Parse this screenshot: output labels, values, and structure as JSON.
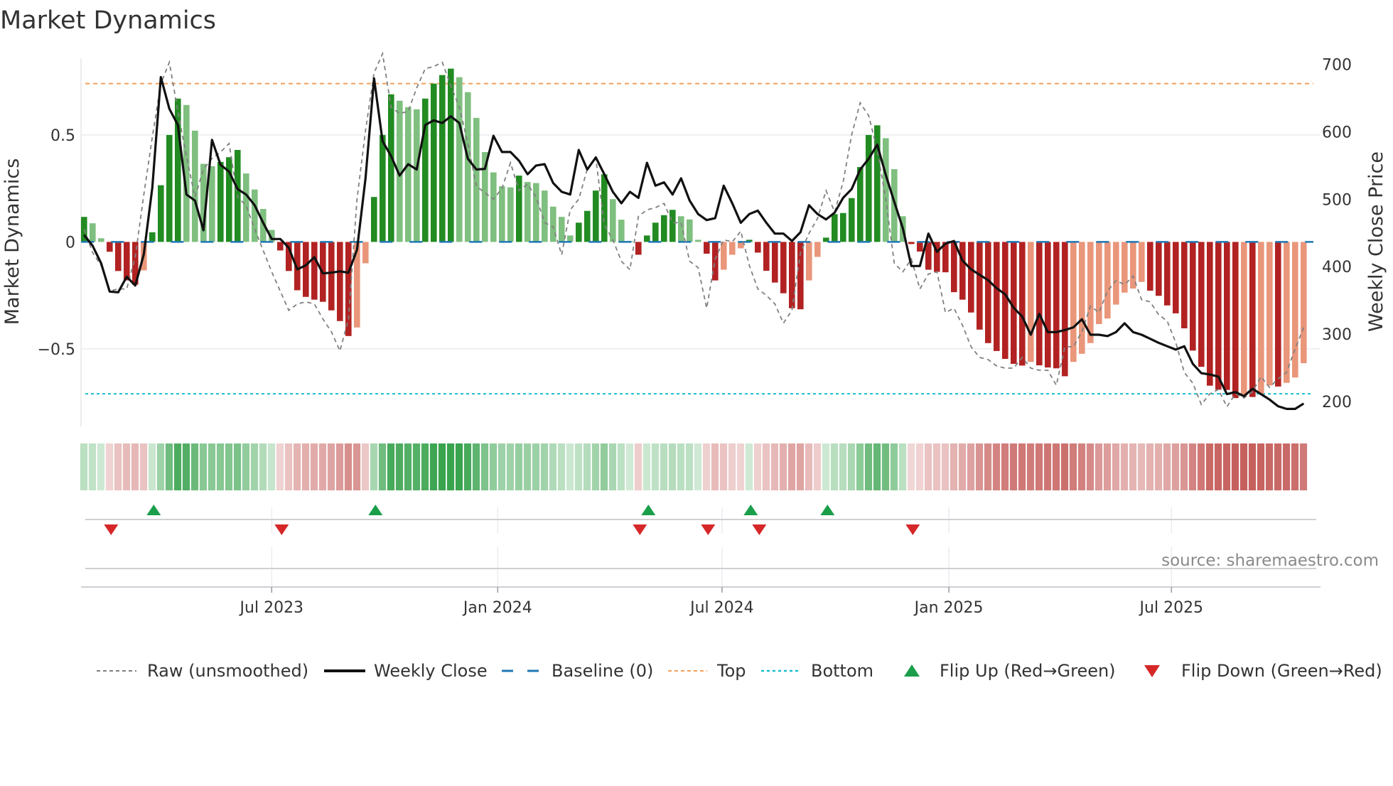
{
  "chart_data": {
    "type": "bar",
    "title": "Market Dynamics",
    "ylabel": "Market Dynamics",
    "y2label": "Weekly Close Price",
    "ylim": [
      -0.87,
      0.87
    ],
    "y2lim": [
      165,
      725
    ],
    "yticks": [
      {
        "v": 0.5,
        "label": "0.5"
      },
      {
        "v": 0,
        "label": "0"
      },
      {
        "v": -0.5,
        "label": "−0.5"
      }
    ],
    "y2ticks": [
      {
        "v": 700,
        "label": "700"
      },
      {
        "v": 600,
        "label": "600"
      },
      {
        "v": 500,
        "label": "500"
      },
      {
        "v": 400,
        "label": "400"
      },
      {
        "v": 300,
        "label": "300"
      },
      {
        "v": 200,
        "label": "200"
      }
    ],
    "xticks": [
      {
        "week": 22,
        "label": "Jul 2023"
      },
      {
        "week": 48.5,
        "label": "Jan 2024"
      },
      {
        "week": 74.8,
        "label": "Jul 2024"
      },
      {
        "week": 101.4,
        "label": "Jan 2025"
      },
      {
        "week": 127.5,
        "label": "Jul 2025"
      }
    ],
    "top_level": 0.74,
    "bottom_level": -0.71,
    "baseline": 0,
    "dynamics": [
      0.117,
      0.087,
      0.017,
      -0.046,
      -0.136,
      -0.18,
      -0.2,
      -0.133,
      0.045,
      0.265,
      0.5,
      0.67,
      0.64,
      0.52,
      0.365,
      0.354,
      0.374,
      0.396,
      0.43,
      0.32,
      0.245,
      0.154,
      0.056,
      -0.04,
      -0.136,
      -0.226,
      -0.257,
      -0.27,
      -0.28,
      -0.32,
      -0.37,
      -0.44,
      -0.4,
      -0.1,
      0.21,
      0.5,
      0.69,
      0.66,
      0.63,
      0.62,
      0.67,
      0.74,
      0.78,
      0.81,
      0.77,
      0.7,
      0.58,
      0.42,
      0.325,
      0.26,
      0.255,
      0.31,
      0.28,
      0.275,
      0.24,
      0.165,
      0.117,
      0.03,
      0.09,
      0.145,
      0.24,
      0.316,
      0.2,
      0.104,
      0.005,
      -0.06,
      0.03,
      0.09,
      0.125,
      0.15,
      0.12,
      0.105,
      0.01,
      -0.055,
      -0.18,
      -0.13,
      -0.06,
      -0.03,
      0.01,
      -0.05,
      -0.135,
      -0.19,
      -0.24,
      -0.31,
      -0.315,
      -0.18,
      -0.07,
      0.02,
      0.13,
      0.135,
      0.205,
      0.35,
      0.5,
      0.545,
      0.485,
      0.34,
      0.12,
      -0.01,
      -0.045,
      -0.13,
      -0.14,
      -0.142,
      -0.235,
      -0.27,
      -0.33,
      -0.41,
      -0.473,
      -0.51,
      -0.547,
      -0.57,
      -0.578,
      -0.561,
      -0.577,
      -0.587,
      -0.591,
      -0.628,
      -0.561,
      -0.523,
      -0.473,
      -0.384,
      -0.358,
      -0.293,
      -0.237,
      -0.218,
      -0.187,
      -0.228,
      -0.252,
      -0.297,
      -0.334,
      -0.404,
      -0.508,
      -0.584,
      -0.672,
      -0.691,
      -0.692,
      -0.73,
      -0.722,
      -0.725,
      -0.71,
      -0.671,
      -0.676,
      -0.659,
      -0.634,
      -0.567
    ],
    "raw": [
      0.06,
      -0.05,
      -0.11,
      -0.23,
      -0.22,
      -0.22,
      -0.07,
      0.22,
      0.49,
      0.74,
      0.84,
      0.61,
      0.4,
      0.21,
      0.34,
      0.39,
      0.42,
      0.46,
      0.21,
      0.17,
      0.06,
      -0.04,
      -0.14,
      -0.23,
      -0.32,
      -0.29,
      -0.28,
      -0.29,
      -0.36,
      -0.42,
      -0.51,
      -0.36,
      0.2,
      0.52,
      0.79,
      0.88,
      0.63,
      0.6,
      0.61,
      0.72,
      0.81,
      0.82,
      0.84,
      0.73,
      0.63,
      0.46,
      0.26,
      0.23,
      0.2,
      0.25,
      0.37,
      0.24,
      0.27,
      0.21,
      0.09,
      0.07,
      -0.06,
      0.15,
      0.2,
      0.34,
      0.39,
      0.08,
      0.01,
      -0.09,
      -0.13,
      0.12,
      0.15,
      0.16,
      0.18,
      0.09,
      0.09,
      -0.09,
      -0.12,
      -0.31,
      -0.08,
      0.01,
      0,
      0.05,
      -0.11,
      -0.22,
      -0.25,
      -0.29,
      -0.38,
      -0.32,
      -0.05,
      0.04,
      0.11,
      0.24,
      0.14,
      0.28,
      0.5,
      0.65,
      0.59,
      0.43,
      0.2,
      -0.1,
      -0.14,
      -0.08,
      -0.22,
      -0.15,
      -0.14,
      -0.33,
      -0.31,
      -0.39,
      -0.49,
      -0.54,
      -0.55,
      -0.58,
      -0.59,
      -0.59,
      -0.54,
      -0.59,
      -0.6,
      -0.6,
      -0.67,
      -0.49,
      -0.49,
      -0.42,
      -0.3,
      -0.33,
      -0.23,
      -0.18,
      -0.2,
      -0.16,
      -0.27,
      -0.28,
      -0.34,
      -0.37,
      -0.47,
      -0.61,
      -0.66,
      -0.76,
      -0.71,
      -0.69,
      -0.77,
      -0.71,
      -0.73,
      -0.7,
      -0.63,
      -0.68,
      -0.64,
      -0.61,
      -0.5,
      -0.4
    ],
    "weekly_close": [
      447,
      431,
      405,
      363,
      362,
      385,
      372,
      418,
      517,
      681,
      634,
      610,
      507,
      498,
      454,
      588,
      551,
      541,
      515,
      507,
      491,
      465,
      441,
      441,
      428,
      396,
      402,
      414,
      390,
      391,
      393,
      391,
      425,
      531,
      679,
      586,
      564,
      535,
      552,
      544,
      610,
      617,
      613,
      623,
      613,
      560,
      544,
      545,
      594,
      570,
      570,
      557,
      537,
      550,
      552,
      524,
      511,
      507,
      573,
      544,
      562,
      537,
      511,
      494,
      511,
      502,
      554,
      520,
      525,
      507,
      531,
      498,
      478,
      469,
      472,
      520,
      494,
      465,
      478,
      483,
      465,
      449,
      449,
      438,
      451,
      491,
      478,
      470,
      480,
      502,
      515,
      544,
      560,
      581,
      536,
      496,
      457,
      401,
      401,
      449,
      422,
      434,
      438,
      409,
      396,
      388,
      380,
      368,
      359,
      339,
      326,
      299,
      330,
      303,
      303,
      306,
      310,
      322,
      299,
      299,
      297,
      303,
      316,
      303,
      299,
      293,
      287,
      282,
      277,
      282,
      256,
      242,
      240,
      237,
      211,
      214,
      208,
      219,
      211,
      203,
      193,
      189,
      189,
      197
    ],
    "flip_up_weeks": [
      8,
      34,
      66,
      78,
      87
    ],
    "flip_down_weeks": [
      3,
      23,
      65,
      73,
      79,
      97
    ],
    "legend": {
      "placement": "bottom",
      "items": [
        {
          "label": "Raw (unsmoothed)"
        },
        {
          "label": "Weekly Close"
        },
        {
          "label": "Baseline (0)"
        },
        {
          "label": "Top"
        },
        {
          "label": "Bottom"
        },
        {
          "label": "Flip Up (Red→Green)"
        },
        {
          "label": "Flip Down (Green→Red)"
        }
      ]
    },
    "source": "source: sharemaestro.com",
    "colors": {
      "up_rising": "#228b22",
      "up_falling": "#7fbf7f",
      "down_falling": "#b22222",
      "down_rising": "#e9967a",
      "raw": "#808080",
      "close": "#111111",
      "baseline": "#1f77b4",
      "top": "#f4a05a",
      "bottom": "#17becf",
      "flip_up": "#1a9e4a",
      "flip_down": "#d62728",
      "strip_green": "#2e9e44",
      "strip_red": "#c0504d"
    }
  }
}
